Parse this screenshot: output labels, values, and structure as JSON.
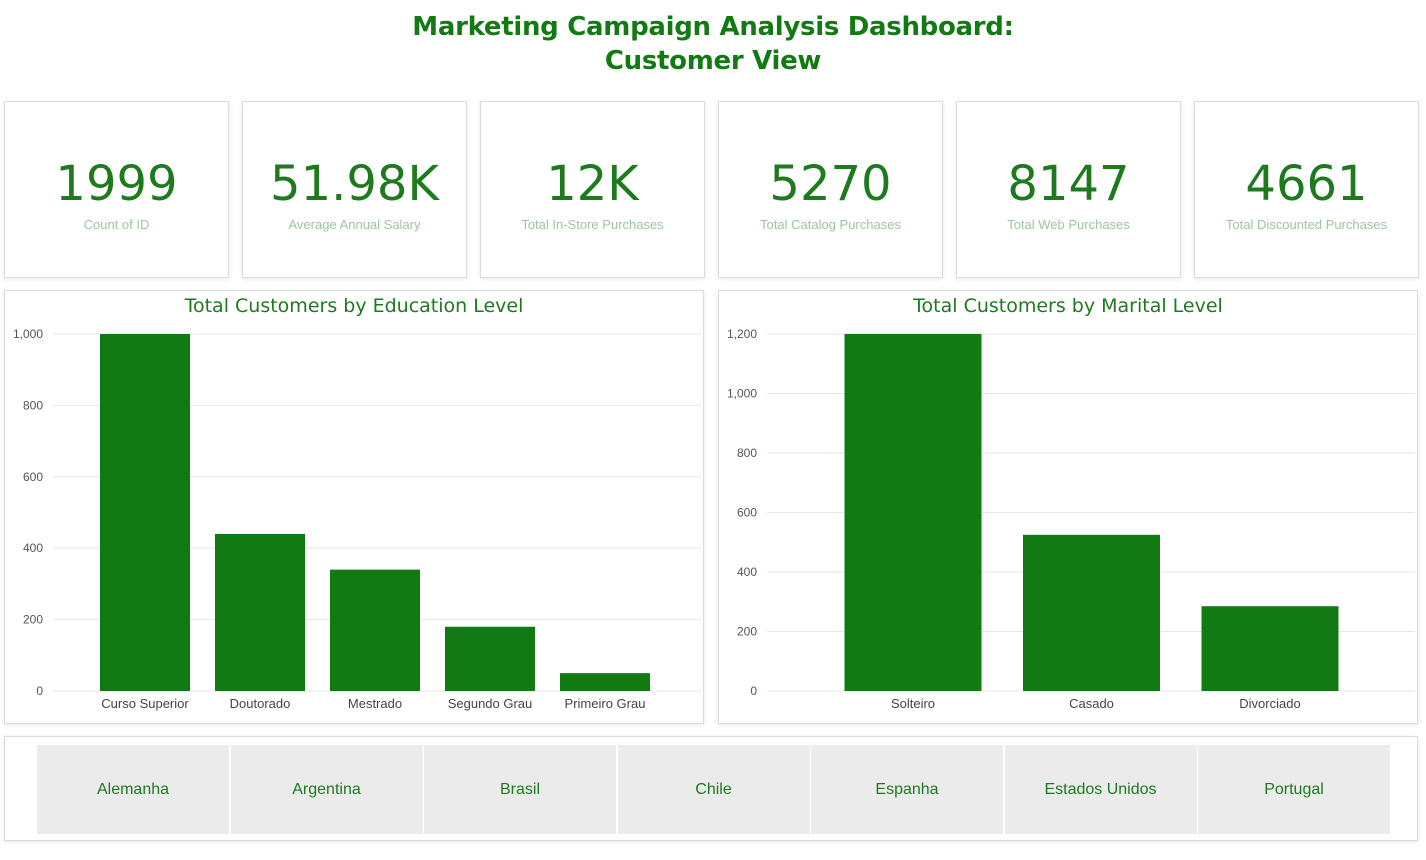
{
  "header": {
    "title_line1": "Marketing Campaign Analysis Dashboard:",
    "title_line2": "Customer View"
  },
  "kpis": [
    {
      "value": "1999",
      "label": "Count of ID"
    },
    {
      "value": "51.98K",
      "label": "Average Annual Salary"
    },
    {
      "value": "12K",
      "label": "Total In-Store Purchases"
    },
    {
      "value": "5270",
      "label": "Total Catalog Purchases"
    },
    {
      "value": "8147",
      "label": "Total Web Purchases"
    },
    {
      "value": "4661",
      "label": "Total Discounted Purchases"
    }
  ],
  "colors": {
    "accent": "#127a12",
    "bar": "#127a12",
    "label_muted": "#9cc79c",
    "slicer_bg": "#ebebeb"
  },
  "chart_data": [
    {
      "type": "bar",
      "title": "Total Customers by Education Level",
      "categories": [
        "Curso Superior",
        "Doutorado",
        "Mestrado",
        "Segundo Grau",
        "Primeiro Grau"
      ],
      "values": [
        1000,
        440,
        340,
        180,
        50
      ],
      "yticks": [
        0,
        200,
        400,
        600,
        800,
        1000
      ],
      "ytick_labels": [
        "0",
        "200",
        "400",
        "600",
        "800",
        "1,000"
      ],
      "ylim": [
        0,
        1000
      ],
      "grid": true
    },
    {
      "type": "bar",
      "title": "Total Customers by Marital Level",
      "categories": [
        "Solteiro",
        "Casado",
        "Divorciado"
      ],
      "values": [
        1200,
        525,
        285
      ],
      "yticks": [
        0,
        200,
        400,
        600,
        800,
        1000,
        1200
      ],
      "ytick_labels": [
        "0",
        "200",
        "400",
        "600",
        "800",
        "1,000",
        "1,200"
      ],
      "ylim": [
        0,
        1200
      ],
      "grid": true
    }
  ],
  "slicer": {
    "items": [
      "Alemanha",
      "Argentina",
      "Brasil",
      "Chile",
      "Espanha",
      "Estados Unidos",
      "Portugal"
    ]
  }
}
